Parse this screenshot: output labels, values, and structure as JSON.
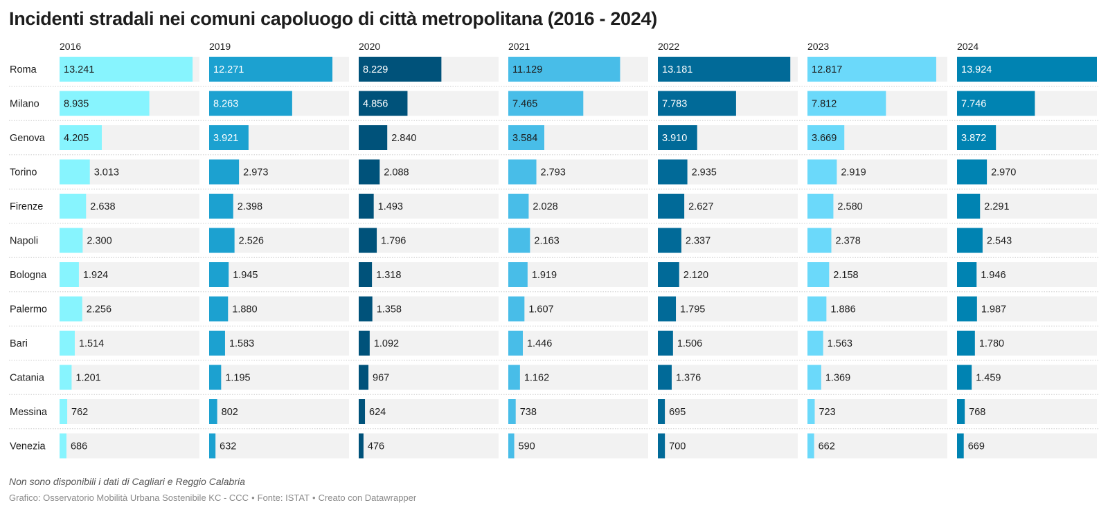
{
  "title": "Incidenti stradali nei comuni capoluogo di città metropolitana (2016 - 2024)",
  "note": "Non sono disponibili i dati di Cagliari e Reggio Calabria",
  "footer": {
    "chart_credit": "Grafico: Osservatorio Mobilità Urbana Sostenibile KC - CCC",
    "source": "Fonte: ISTAT",
    "tool": "Creato con Datawrapper",
    "separator": "•"
  },
  "colors": {
    "2016": "#87f4fe",
    "2019": "#1ca1d0",
    "2020": "#00527a",
    "2021": "#48bde8",
    "2022": "#016a98",
    "2023": "#6bd9fa",
    "2024": "#0083b2",
    "track": "#f2f2f2",
    "divider": "#cccccc"
  },
  "chart_data": {
    "type": "bar",
    "layout": "small-multiples",
    "title": "Incidenti stradali nei comuni capoluogo di città metropolitana (2016 - 2024)",
    "xlim": [
      0,
      13924
    ],
    "categories": [
      "Roma",
      "Milano",
      "Genova",
      "Torino",
      "Firenze",
      "Napoli",
      "Bologna",
      "Palermo",
      "Bari",
      "Catania",
      "Messina",
      "Venezia"
    ],
    "series": [
      {
        "name": "2016",
        "values": [
          13241,
          8935,
          4205,
          3013,
          2638,
          2300,
          1924,
          2256,
          1514,
          1201,
          762,
          686
        ],
        "labels": [
          "13.241",
          "8.935",
          "4.205",
          "3.013",
          "2.638",
          "2.300",
          "1.924",
          "2.256",
          "1.514",
          "1.201",
          "762",
          "686"
        ]
      },
      {
        "name": "2019",
        "values": [
          12271,
          8263,
          3921,
          2973,
          2398,
          2526,
          1945,
          1880,
          1583,
          1195,
          802,
          632
        ],
        "labels": [
          "12.271",
          "8.263",
          "3.921",
          "2.973",
          "2.398",
          "2.526",
          "1.945",
          "1.880",
          "1.583",
          "1.195",
          "802",
          "632"
        ]
      },
      {
        "name": "2020",
        "values": [
          8229,
          4856,
          2840,
          2088,
          1493,
          1796,
          1318,
          1358,
          1092,
          967,
          624,
          476
        ],
        "labels": [
          "8.229",
          "4.856",
          "2.840",
          "2.088",
          "1.493",
          "1.796",
          "1.318",
          "1.358",
          "1.092",
          "967",
          "624",
          "476"
        ]
      },
      {
        "name": "2021",
        "values": [
          11129,
          7465,
          3584,
          2793,
          2028,
          2163,
          1919,
          1607,
          1446,
          1162,
          738,
          590
        ],
        "labels": [
          "11.129",
          "7.465",
          "3.584",
          "2.793",
          "2.028",
          "2.163",
          "1.919",
          "1.607",
          "1.446",
          "1.162",
          "738",
          "590"
        ]
      },
      {
        "name": "2022",
        "values": [
          13181,
          7783,
          3910,
          2935,
          2627,
          2337,
          2120,
          1795,
          1506,
          1376,
          695,
          700
        ],
        "labels": [
          "13.181",
          "7.783",
          "3.910",
          "2.935",
          "2.627",
          "2.337",
          "2.120",
          "1.795",
          "1.506",
          "1.376",
          "695",
          "700"
        ]
      },
      {
        "name": "2023",
        "values": [
          12817,
          7812,
          3669,
          2919,
          2580,
          2378,
          2158,
          1886,
          1563,
          1369,
          723,
          662
        ],
        "labels": [
          "12.817",
          "7.812",
          "3.669",
          "2.919",
          "2.580",
          "2.378",
          "2.158",
          "1.886",
          "1.563",
          "1.369",
          "723",
          "662"
        ]
      },
      {
        "name": "2024",
        "values": [
          13924,
          7746,
          3872,
          2970,
          2291,
          2543,
          1946,
          1987,
          1780,
          1459,
          768,
          669
        ],
        "labels": [
          "13.924",
          "7.746",
          "3.872",
          "2.970",
          "2.291",
          "2.543",
          "1.946",
          "1.987",
          "1.780",
          "1.459",
          "768",
          "669"
        ]
      }
    ]
  }
}
